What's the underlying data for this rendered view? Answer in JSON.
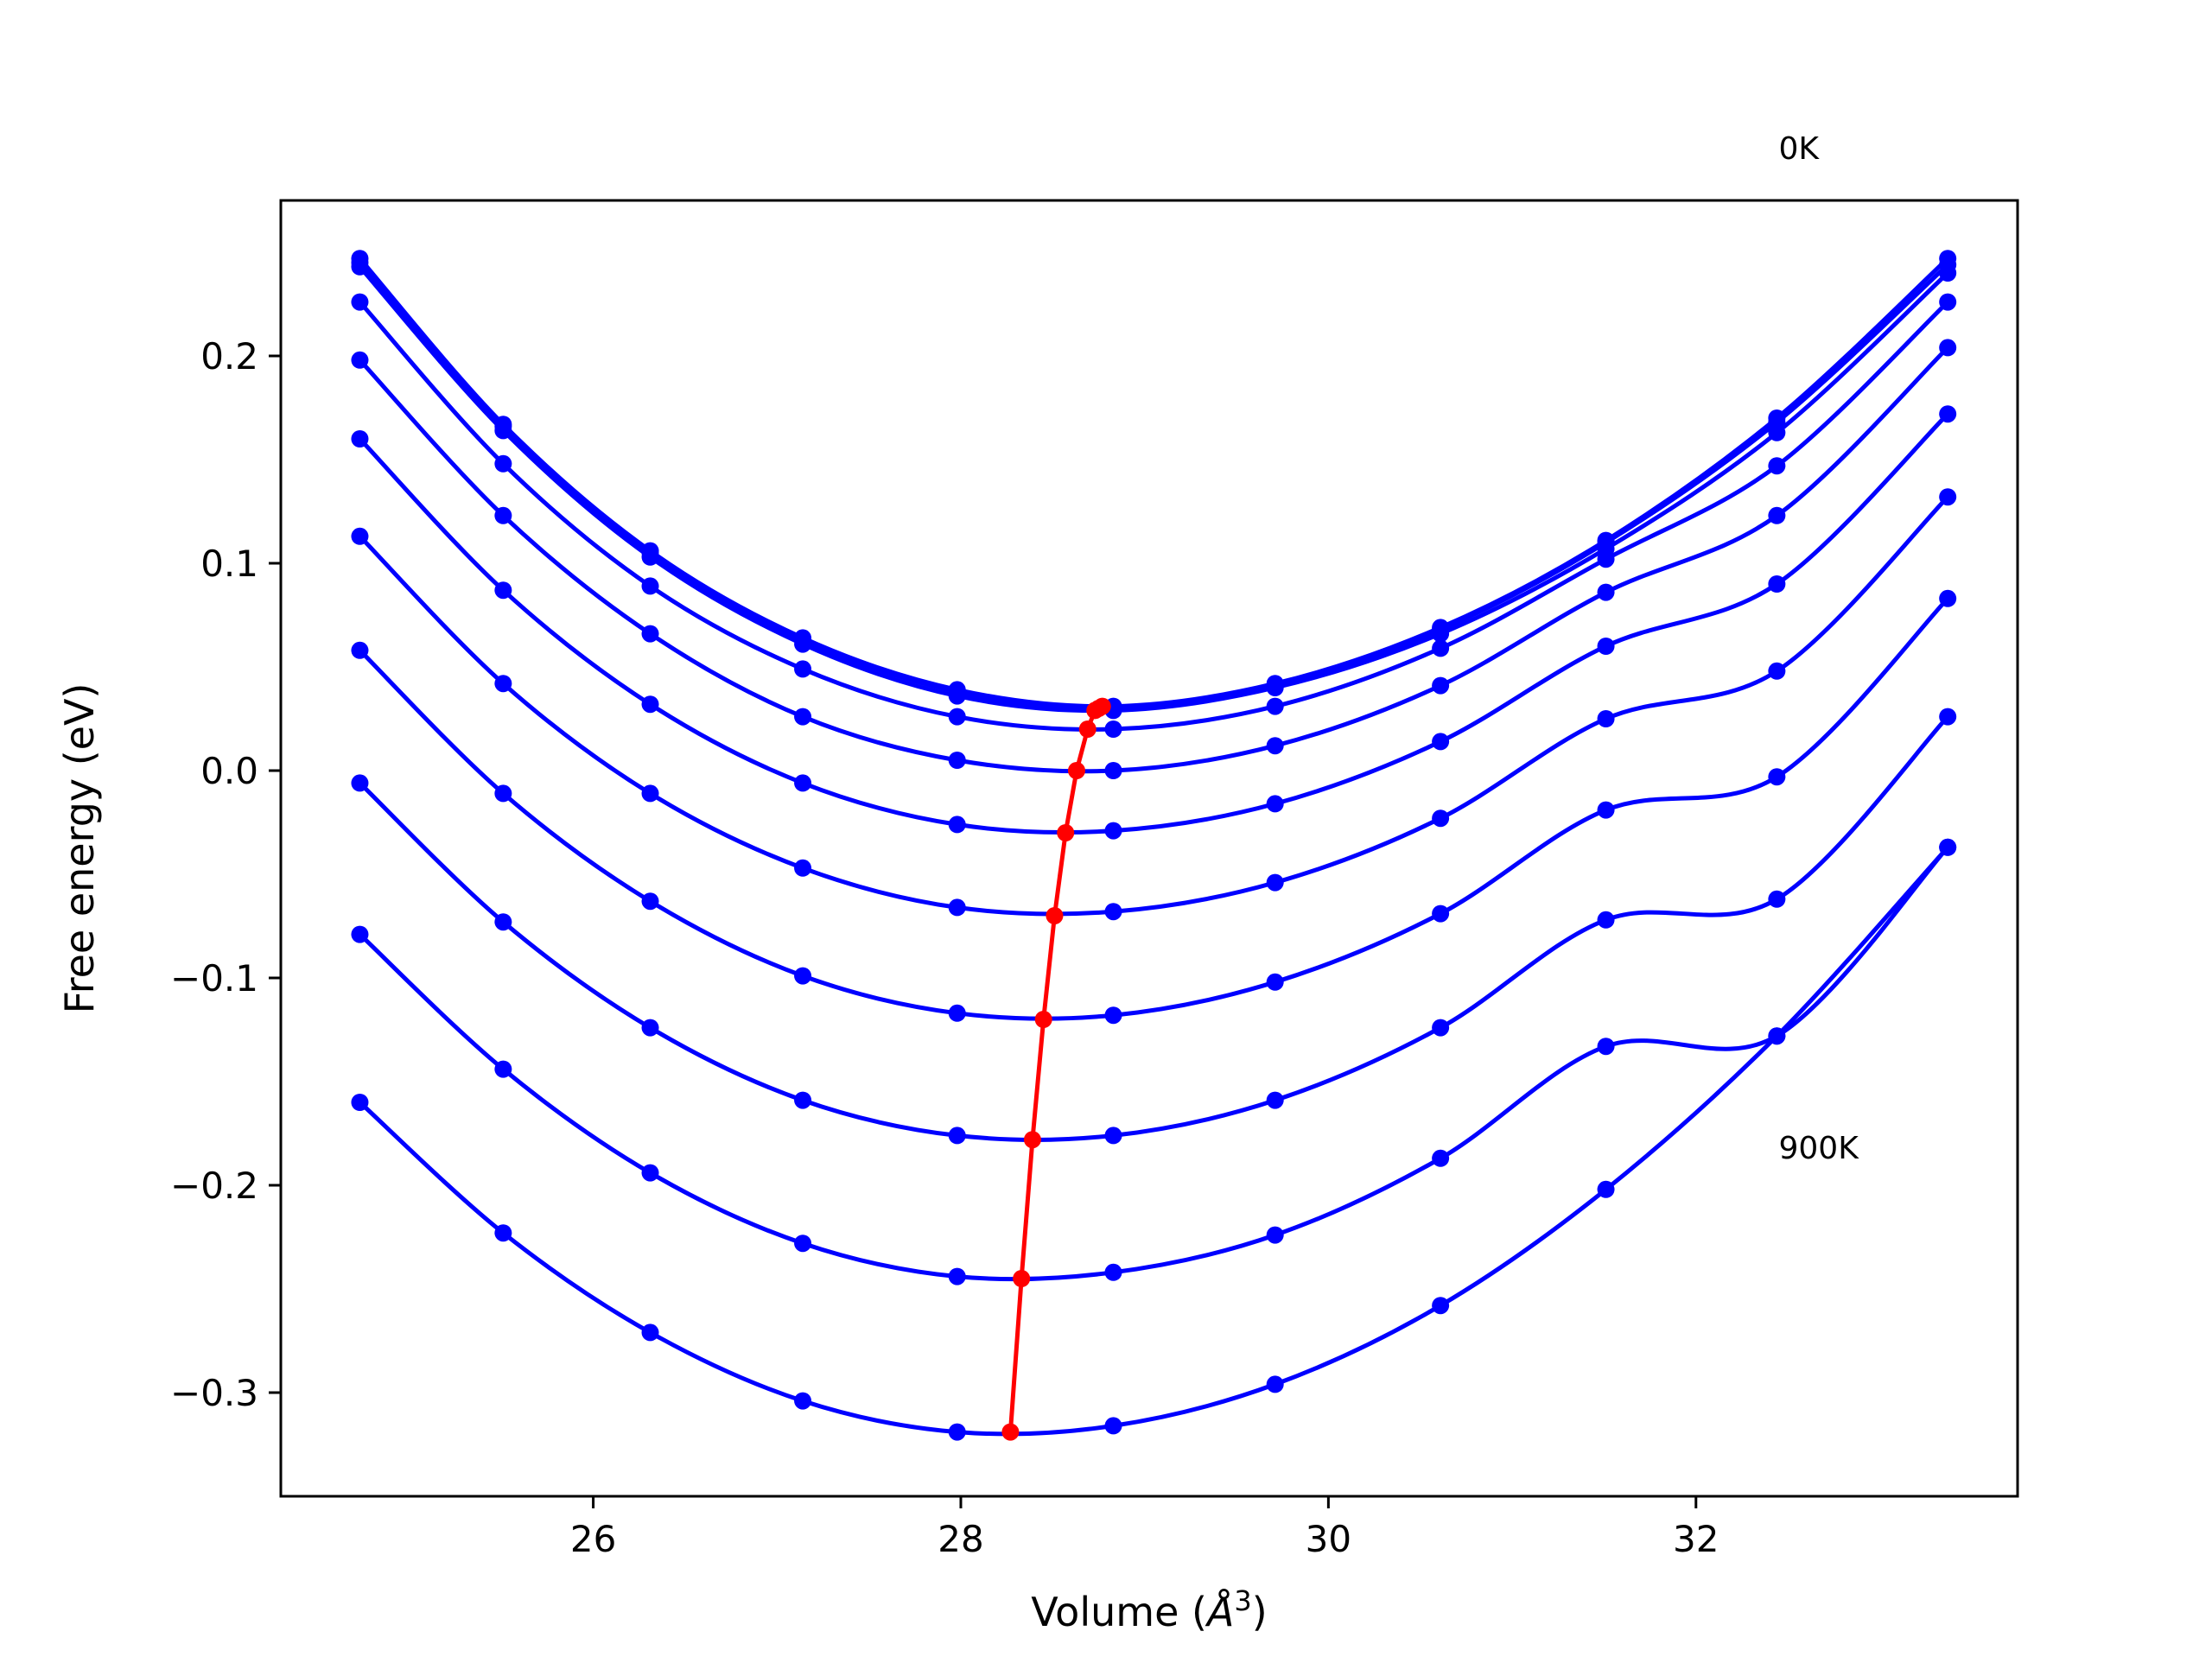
{
  "chart_data": {
    "type": "line",
    "xlabel": "Volume (",
    "xlabel_unit": "Å",
    "xlabel_exp": "3",
    "xlabel_close": ")",
    "ylabel": "Free energy (eV)",
    "xlim": [
      24.3,
      33.75
    ],
    "ylim": [
      -0.35,
      0.275
    ],
    "xticks": [
      26,
      28,
      30,
      32
    ],
    "xtick_labels": [
      "26",
      "28",
      "30",
      "32"
    ],
    "yticks": [
      -0.3,
      -0.2,
      -0.1,
      0.0,
      0.1,
      0.2
    ],
    "ytick_labels": [
      "−0.3",
      "−0.2",
      "−0.1",
      "0.0",
      "0.1",
      "0.2"
    ],
    "annotations": [
      {
        "text": "0K",
        "x": 32.45,
        "y": 0.3
      },
      {
        "text": "900K",
        "x": 32.45,
        "y": -0.182
      }
    ],
    "grid": false,
    "x": [
      24.73,
      25.51,
      26.31,
      27.14,
      27.98,
      28.83,
      29.71,
      30.61,
      31.51,
      32.44,
      33.37
    ],
    "series": [
      {
        "values": [
          0.247,
          0.167,
          0.106,
          0.064,
          0.039,
          0.031,
          0.042,
          0.069,
          0.111,
          0.17,
          0.247
        ],
        "min": [
          28.77,
          0.031
        ]
      },
      {
        "values": [
          0.245,
          0.166,
          0.105,
          0.063,
          0.038,
          0.03,
          0.041,
          0.068,
          0.11,
          0.168,
          0.244
        ],
        "min": [
          28.75,
          0.03
        ]
      },
      {
        "values": [
          0.243,
          0.164,
          0.103,
          0.061,
          0.036,
          0.029,
          0.04,
          0.066,
          0.107,
          0.163,
          0.24
        ],
        "min": [
          28.73,
          0.029
        ]
      },
      {
        "values": [
          0.226,
          0.148,
          0.089,
          0.049,
          0.026,
          0.02,
          0.031,
          0.059,
          0.102,
          0.147,
          0.226
        ],
        "min": [
          28.69,
          0.02
        ]
      },
      {
        "values": [
          0.198,
          0.123,
          0.066,
          0.026,
          0.005,
          0.0,
          0.012,
          0.041,
          0.086,
          0.123,
          0.204
        ],
        "min": [
          28.63,
          0.0
        ]
      },
      {
        "values": [
          0.16,
          0.087,
          0.032,
          -0.006,
          -0.026,
          -0.029,
          -0.016,
          0.014,
          0.06,
          0.09,
          0.172
        ],
        "min": [
          28.57,
          -0.03
        ]
      },
      {
        "values": [
          0.113,
          0.042,
          -0.011,
          -0.047,
          -0.066,
          -0.068,
          -0.054,
          -0.023,
          0.025,
          0.048,
          0.132
        ],
        "min": [
          28.51,
          -0.07
        ]
      },
      {
        "values": [
          0.058,
          -0.011,
          -0.063,
          -0.099,
          -0.117,
          -0.118,
          -0.102,
          -0.069,
          -0.019,
          -0.003,
          0.083
        ],
        "min": [
          28.45,
          -0.12
        ]
      },
      {
        "values": [
          -0.006,
          -0.073,
          -0.124,
          -0.159,
          -0.176,
          -0.176,
          -0.159,
          -0.124,
          -0.072,
          -0.062,
          0.026
        ],
        "min": [
          28.39,
          -0.178
        ]
      },
      {
        "values": [
          -0.079,
          -0.144,
          -0.194,
          -0.228,
          -0.244,
          -0.242,
          -0.224,
          -0.187,
          -0.133,
          -0.128,
          -0.037
        ],
        "min": [
          28.33,
          -0.245
        ]
      },
      {
        "values": [
          -0.16,
          -0.223,
          -0.271,
          -0.304,
          -0.319,
          -0.316,
          -0.296,
          -0.258,
          -0.202,
          -0.128,
          -0.037
        ],
        "min": [
          28.27,
          -0.319
        ]
      }
    ],
    "min_path": {
      "x": [
        28.77,
        28.75,
        28.73,
        28.69,
        28.63,
        28.57,
        28.51,
        28.45,
        28.39,
        28.33,
        28.27
      ],
      "y": [
        0.031,
        0.03,
        0.029,
        0.02,
        0.0,
        -0.03,
        -0.07,
        -0.12,
        -0.178,
        -0.245,
        -0.319
      ]
    },
    "colors": {
      "curves": "#0000ff",
      "min_path": "#ff0000",
      "axes": "#000000"
    }
  }
}
